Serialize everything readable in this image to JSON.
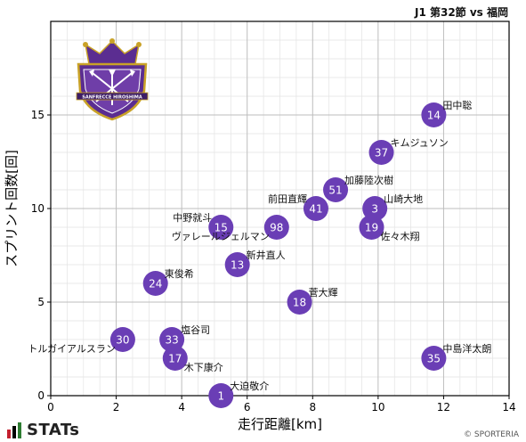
{
  "header": {
    "title": "J1 第32節 vs 福岡"
  },
  "footer": {
    "brand": "STATs",
    "credit": "© SPORTERIA"
  },
  "colors": {
    "point": "#6a3eb5",
    "point_text": "#ffffff",
    "grid": "#bdbdbd",
    "grid_minor": "#e3e3e3",
    "axis": "#000000",
    "logo_bars": [
      "#c4202f",
      "#000000",
      "#2e7d32"
    ]
  },
  "crest": {
    "icon": "sanfrecce-hiroshima-crest",
    "text": "SANFRECCE HIROSHIMA"
  },
  "chart_data": {
    "type": "scatter",
    "xlabel": "走行距離[km]",
    "ylabel": "スプリント回数[回]",
    "xlim": [
      0,
      14
    ],
    "ylim": [
      0,
      20
    ],
    "xticks": [
      0,
      2,
      4,
      6,
      8,
      10,
      12,
      14
    ],
    "yticks": [
      0,
      5,
      10,
      15
    ],
    "grid": true,
    "points": [
      {
        "number": "14",
        "name": "田中聡",
        "x": 11.7,
        "y": 15,
        "label_pos": "upper-right"
      },
      {
        "number": "37",
        "name": "キムジュソン",
        "x": 10.1,
        "y": 13,
        "label_pos": "upper-right"
      },
      {
        "number": "51",
        "name": "加藤陸次樹",
        "x": 8.7,
        "y": 11,
        "label_pos": "upper-right"
      },
      {
        "number": "41",
        "name": "前田直輝",
        "x": 8.1,
        "y": 10,
        "label_pos": "upper-left"
      },
      {
        "number": "3",
        "name": "山崎大地",
        "x": 9.9,
        "y": 10,
        "label_pos": "upper-right"
      },
      {
        "number": "15",
        "name": "中野就斗",
        "x": 5.2,
        "y": 9,
        "label_pos": "upper-left"
      },
      {
        "number": "98",
        "name": "ヴァレールジェルマン",
        "x": 6.9,
        "y": 9,
        "label_pos": "lower-left"
      },
      {
        "number": "19",
        "name": "佐々木翔",
        "x": 9.8,
        "y": 9,
        "label_pos": "lower-right"
      },
      {
        "number": "13",
        "name": "新井直人",
        "x": 5.7,
        "y": 7,
        "label_pos": "upper-right"
      },
      {
        "number": "24",
        "name": "東俊希",
        "x": 3.2,
        "y": 6,
        "label_pos": "upper-right"
      },
      {
        "number": "18",
        "name": "菅大輝",
        "x": 7.6,
        "y": 5,
        "label_pos": "upper-right"
      },
      {
        "number": "30",
        "name": "トルガイアルスラン",
        "x": 2.2,
        "y": 3,
        "label_pos": "lower-left"
      },
      {
        "number": "33",
        "name": "塩谷司",
        "x": 3.7,
        "y": 3,
        "label_pos": "upper-right"
      },
      {
        "number": "17",
        "name": "木下康介",
        "x": 3.8,
        "y": 2,
        "label_pos": "lower-right"
      },
      {
        "number": "35",
        "name": "中島洋太朗",
        "x": 11.7,
        "y": 2,
        "label_pos": "upper-right"
      },
      {
        "number": "1",
        "name": "大迫敬介",
        "x": 5.2,
        "y": 0,
        "label_pos": "upper-right"
      }
    ]
  }
}
